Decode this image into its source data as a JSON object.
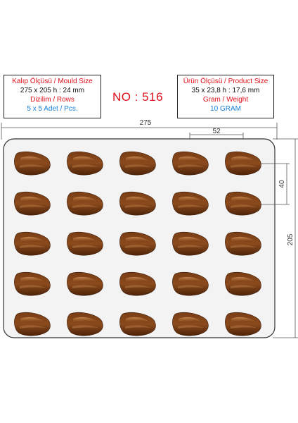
{
  "mould_box": {
    "line1": "Kalıp Ölçüsü / Mould Size",
    "line2": "275 x 205 h : 24 mm",
    "line3": "Dizilim / Rows",
    "line4": "5 x 5 Adet / Pcs."
  },
  "model_number": "NO : 516",
  "product_box": {
    "line1": "Ürün Ölçüsü / Product Size",
    "line2": "35 x 23,8 h : 17,6 mm",
    "line3": "Gram / Weight",
    "line4": "10 GRAM"
  },
  "dimensions": {
    "mould_width": "275",
    "mould_height": "205",
    "pitch_horizontal": "52",
    "pitch_vertical": "40"
  },
  "mould": {
    "rows": 5,
    "columns": 5
  },
  "colors": {
    "accent_red": "#e0101a",
    "accent_blue": "#1a7fd6",
    "chocolate": "#6b3410",
    "tray_fill": "#f2f2f2"
  }
}
